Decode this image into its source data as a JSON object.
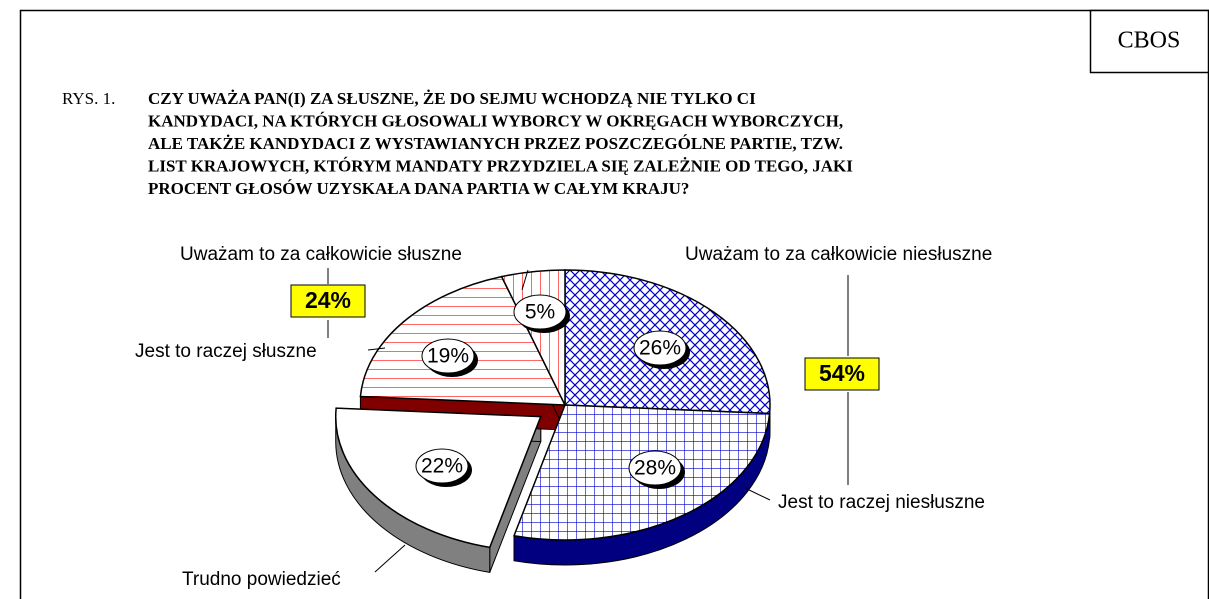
{
  "source": "CBOS",
  "figure_label": "RYS. 1.",
  "chart_data": {
    "type": "pie",
    "title": [
      "CZY UWAŻA PAN(I) ZA SŁUSZNE, ŻE DO SEJMU WCHODZĄ NIE TYLKO CI",
      "KANDYDACI, NA KTÓRYCH GŁOSOWALI WYBORCY W OKRĘGACH WYBORCZYCH,",
      "ALE TAKŻE KANDYDACI Z WYSTAWIANYCH PRZEZ POSZCZEGÓLNE PARTIE, TZW.",
      "LIST KRAJOWYCH, KTÓRYM MANDATY PRZYDZIELA SIĘ ZALEŻNIE OD TEGO, JAKI",
      "PROCENT GŁOSÓW UZYSKAŁA DANA PARTIA W CAŁYM KRAJU?"
    ],
    "categories": [
      "Uważam to za całkowicie niesłuszne",
      "Jest to raczej niesłuszne",
      "Trudno powiedzieć",
      "Jest to raczej słuszne",
      "Uważam to za całkowicie słuszne"
    ],
    "values": [
      26,
      28,
      22,
      19,
      5
    ],
    "value_labels": [
      "26%",
      "28%",
      "22%",
      "19%",
      "5%"
    ],
    "colors": [
      "#0000cc",
      "#0000cc",
      "#ffffff",
      "#ff0000",
      "#ff0000"
    ],
    "annotations": [
      "54%",
      "24%"
    ]
  }
}
